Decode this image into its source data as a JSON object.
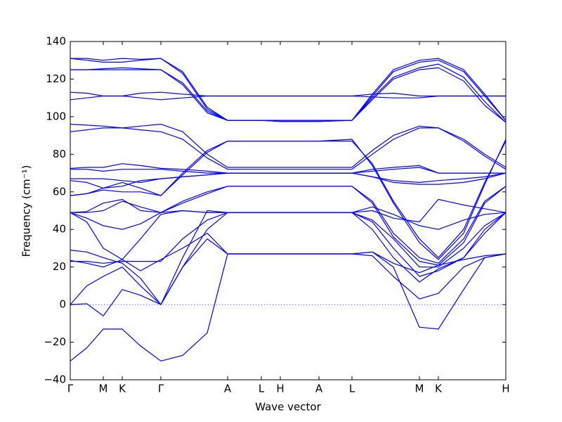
{
  "chart_data": {
    "type": "line",
    "x_label": "Wave vector",
    "y_label": "Frequency (cm⁻¹)",
    "color": "#0000ff",
    "xlim": [
      0,
      6.2
    ],
    "ylim": [
      -40,
      140
    ],
    "xticks": [
      {
        "value": 0,
        "label": "Γ"
      },
      {
        "value": 0.47,
        "label": "M"
      },
      {
        "value": 0.74,
        "label": "K"
      },
      {
        "value": 1.29,
        "label": "Γ"
      },
      {
        "value": 2.24,
        "label": "A"
      },
      {
        "value": 2.72,
        "label": "L"
      },
      {
        "value": 2.99,
        "label": "H"
      },
      {
        "value": 3.54,
        "label": "A"
      },
      {
        "value": 4.01,
        "label": "L"
      },
      {
        "value": 4.97,
        "label": "M"
      },
      {
        "value": 5.24,
        "label": "K"
      },
      {
        "value": 6.2,
        "label": "H"
      }
    ],
    "yticks": [
      {
        "value": -40,
        "label": "−40"
      },
      {
        "value": -20,
        "label": "−20"
      },
      0,
      20,
      40,
      60,
      80,
      100,
      120,
      140
    ],
    "x": [
      0,
      0.235,
      0.47,
      0.74,
      1.0,
      1.29,
      1.6,
      1.95,
      2.24,
      2.72,
      2.99,
      3.54,
      4.01,
      4.3,
      4.6,
      4.97,
      5.24,
      5.6,
      5.9,
      6.2
    ],
    "series": [
      {
        "values": [
          131,
          131,
          130,
          131,
          130.5,
          131,
          124,
          105,
          98,
          98,
          98,
          98,
          98,
          112,
          125,
          130,
          131,
          125,
          112,
          98
        ]
      },
      {
        "values": [
          131,
          130,
          129,
          129,
          130,
          131,
          123,
          104,
          98,
          98,
          98,
          98,
          98,
          111,
          124,
          129,
          130,
          124,
          111,
          98
        ]
      },
      {
        "values": [
          125,
          125,
          125.5,
          126,
          125.5,
          125,
          118,
          103,
          98,
          98,
          97.5,
          97.5,
          98,
          110,
          121,
          126,
          128,
          121,
          108,
          97
        ]
      },
      {
        "values": [
          125,
          125,
          125,
          125,
          125,
          125,
          117,
          102,
          98,
          98,
          97.5,
          97.5,
          98,
          109,
          120,
          125,
          126,
          119,
          106,
          97
        ]
      },
      {
        "values": [
          113,
          112.5,
          111,
          111,
          112.5,
          113,
          112,
          111,
          111,
          111,
          111,
          111,
          111,
          112,
          112.5,
          111,
          111,
          111,
          111,
          111
        ]
      },
      {
        "values": [
          109,
          110,
          111,
          111,
          110,
          109,
          110,
          111,
          111,
          111,
          111,
          111,
          111,
          110.5,
          110,
          110,
          111,
          111,
          111,
          111
        ]
      },
      {
        "values": [
          96,
          95.5,
          95,
          94,
          95,
          96,
          92,
          80,
          73,
          73,
          73,
          73,
          73,
          82,
          90,
          95,
          94,
          88,
          80,
          73
        ]
      },
      {
        "values": [
          92,
          93,
          94,
          94,
          93,
          92,
          88,
          78,
          72,
          72,
          72,
          72,
          72,
          80,
          88,
          94,
          94,
          87,
          79,
          72
        ]
      },
      {
        "values": [
          72.5,
          73,
          73,
          75,
          74,
          72.5,
          72,
          71,
          70,
          70,
          70,
          70,
          70,
          72,
          73,
          74,
          70,
          70,
          70,
          70
        ]
      },
      {
        "values": [
          72,
          72,
          71,
          72,
          72,
          72,
          71,
          70,
          70,
          70,
          70,
          70,
          70,
          71,
          72,
          73,
          70,
          70,
          70,
          70
        ]
      },
      {
        "values": [
          67,
          67,
          67,
          66,
          65,
          67,
          68,
          69,
          70,
          70,
          70,
          70,
          70,
          68,
          66,
          65,
          66,
          67,
          68,
          70
        ]
      },
      {
        "values": [
          66,
          65,
          62,
          63,
          66,
          67,
          68,
          69,
          70,
          70,
          70,
          70,
          70,
          68,
          65,
          64,
          64,
          65,
          67,
          70
        ]
      },
      {
        "values": [
          58,
          59,
          62,
          65,
          62,
          58,
          70,
          82,
          87,
          87,
          87,
          87,
          87,
          75,
          55,
          35,
          25,
          40,
          65,
          87
        ]
      },
      {
        "values": [
          58,
          59,
          61,
          60,
          60,
          58,
          69,
          81,
          87,
          87,
          87,
          87,
          88,
          74,
          54,
          33,
          24,
          38,
          64,
          88
        ]
      },
      {
        "values": [
          49,
          49.5,
          54,
          56,
          50,
          49,
          55,
          60,
          63,
          63,
          63,
          63,
          63,
          55,
          38,
          25,
          22,
          35,
          55,
          63
        ]
      },
      {
        "values": [
          49,
          49,
          50,
          55,
          52,
          49,
          54,
          59,
          63,
          63,
          63,
          63,
          63,
          54,
          36,
          23,
          21,
          33,
          54,
          63
        ]
      },
      {
        "values": [
          49,
          46,
          42,
          40,
          43,
          49,
          50,
          49,
          49,
          49,
          49,
          49,
          49,
          52,
          48,
          42,
          40,
          45,
          48,
          49
        ]
      },
      {
        "values": [
          49,
          44,
          30,
          24,
          35,
          48,
          50,
          49,
          49,
          49,
          49,
          49,
          49,
          50,
          46,
          44,
          56,
          53,
          51,
          49
        ]
      },
      {
        "values": [
          29,
          28,
          25,
          22,
          14,
          0,
          20,
          40,
          49,
          49,
          49,
          49,
          49,
          45,
          35,
          20,
          20,
          30,
          42,
          49
        ]
      },
      {
        "values": [
          23,
          23,
          22,
          23,
          23,
          23,
          35,
          45,
          49,
          49,
          49,
          49,
          49,
          44,
          30,
          15,
          18,
          25,
          40,
          49
        ]
      },
      {
        "values": [
          23.5,
          22,
          20,
          24,
          18,
          24,
          30,
          38,
          27,
          27,
          27,
          27,
          27,
          28,
          22,
          17,
          21,
          24,
          26,
          27
        ]
      },
      {
        "values": [
          0,
          10,
          15,
          20,
          10,
          0,
          25,
          50,
          49,
          49,
          49,
          49,
          49,
          40,
          25,
          12,
          19,
          25,
          38,
          49
        ]
      },
      {
        "values": [
          0,
          0.5,
          -6,
          8,
          5,
          0,
          20,
          35,
          27,
          27,
          27,
          27,
          27,
          26,
          15,
          3,
          6,
          20,
          25,
          27
        ]
      },
      {
        "values": [
          -30,
          -23,
          -13,
          -13,
          -22,
          -30,
          -27,
          -15,
          27,
          27,
          27,
          27,
          27,
          28,
          20,
          -12,
          -13,
          8,
          25,
          27
        ]
      }
    ]
  }
}
